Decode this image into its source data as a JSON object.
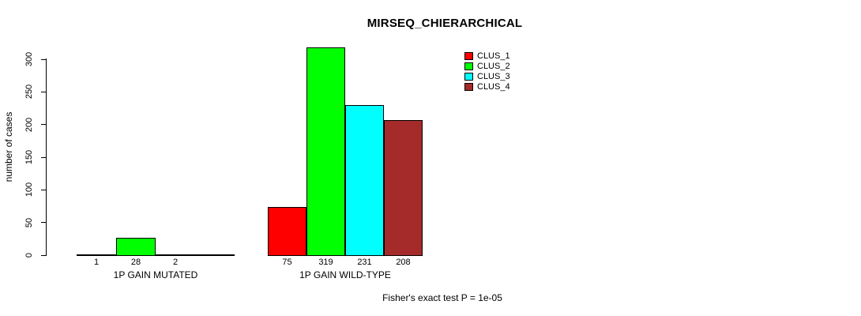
{
  "chart_data": {
    "type": "bar",
    "title": "MIRSEQ_CHIERARCHICAL",
    "ylabel": "number of cases",
    "ylim": [
      0,
      300
    ],
    "yticks": [
      0,
      50,
      100,
      150,
      200,
      250,
      300
    ],
    "grid": false,
    "legend_position": "top-right",
    "legend": [
      {
        "label": "CLUS_1",
        "color": "#FF0000"
      },
      {
        "label": "CLUS_2",
        "color": "#00FF00"
      },
      {
        "label": "CLUS_3",
        "color": "#00FFFF"
      },
      {
        "label": "CLUS_4",
        "color": "#A52A2A"
      }
    ],
    "categories": [
      "1P GAIN MUTATED",
      "1P GAIN WILD-TYPE"
    ],
    "series": [
      {
        "name": "CLUS_1",
        "values": [
          1,
          75
        ]
      },
      {
        "name": "CLUS_2",
        "values": [
          28,
          319
        ]
      },
      {
        "name": "CLUS_3",
        "values": [
          2,
          231
        ]
      },
      {
        "name": "CLUS_4",
        "values": [
          0,
          208
        ]
      }
    ],
    "bar_count_labels": [
      [
        "1",
        "28",
        "2",
        ""
      ],
      [
        "75",
        "319",
        "231",
        "208"
      ]
    ],
    "annotation": "Fisher's exact test P = 1e-05"
  }
}
